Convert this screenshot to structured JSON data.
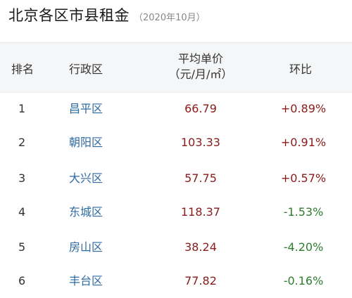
{
  "title": "北京各区市县租金",
  "subtitle": "（2020年10月）",
  "columns": {
    "rank": "排名",
    "district": "行政区",
    "price_line1": "平均单价",
    "price_line2": "（元/月/㎡）",
    "change": "环比"
  },
  "rows": [
    {
      "rank": "1",
      "district": "昌平区",
      "price": "66.79",
      "change": "+0.89%"
    },
    {
      "rank": "2",
      "district": "朝阳区",
      "price": "103.33",
      "change": "+0.91%"
    },
    {
      "rank": "3",
      "district": "大兴区",
      "price": "57.75",
      "change": "+0.57%"
    },
    {
      "rank": "4",
      "district": "东城区",
      "price": "118.37",
      "change": "-1.53%"
    },
    {
      "rank": "5",
      "district": "房山区",
      "price": "38.24",
      "change": "-4.20%"
    },
    {
      "rank": "6",
      "district": "丰台区",
      "price": "77.82",
      "change": "-0.16%"
    }
  ],
  "colors": {
    "positive": "#8b1a1a",
    "negative": "#2e7d2e",
    "link": "#2e6aa3",
    "header_bg": "#f5f6f7"
  }
}
